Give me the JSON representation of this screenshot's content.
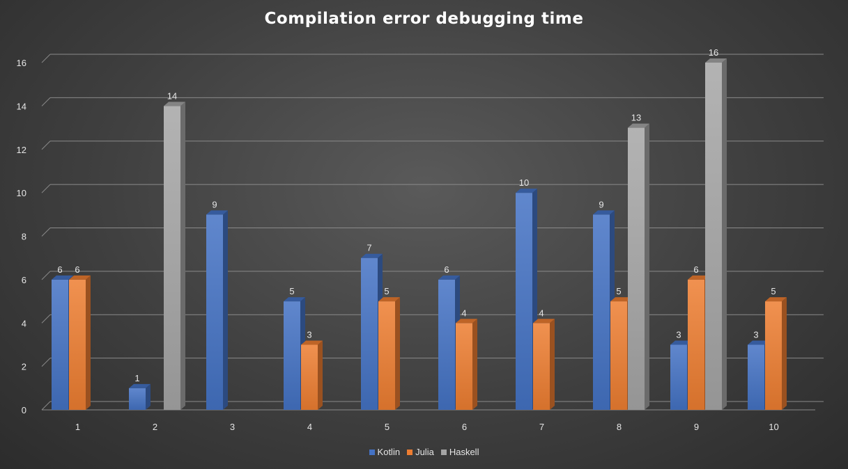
{
  "chart_data": {
    "type": "bar",
    "title": "Compilation error debugging time",
    "categories": [
      "1",
      "2",
      "3",
      "4",
      "5",
      "6",
      "7",
      "8",
      "9",
      "10"
    ],
    "series": [
      {
        "name": "Kotlin",
        "color": "#4472c4",
        "values": [
          6,
          1,
          9,
          5,
          7,
          6,
          10,
          9,
          3,
          3
        ]
      },
      {
        "name": "Julia",
        "color": "#ed7d31",
        "values": [
          6,
          null,
          null,
          3,
          5,
          4,
          4,
          5,
          6,
          5
        ]
      },
      {
        "name": "Haskell",
        "color": "#a5a5a5",
        "values": [
          null,
          14,
          null,
          null,
          null,
          null,
          null,
          13,
          16,
          null
        ]
      }
    ],
    "ylim": [
      0,
      16
    ],
    "yticks": [
      "0",
      "2",
      "4",
      "6",
      "8",
      "10",
      "12",
      "14",
      "16"
    ],
    "xlabel": "",
    "ylabel": "",
    "grid": true,
    "legend": "bottom",
    "style": "3d-column"
  }
}
